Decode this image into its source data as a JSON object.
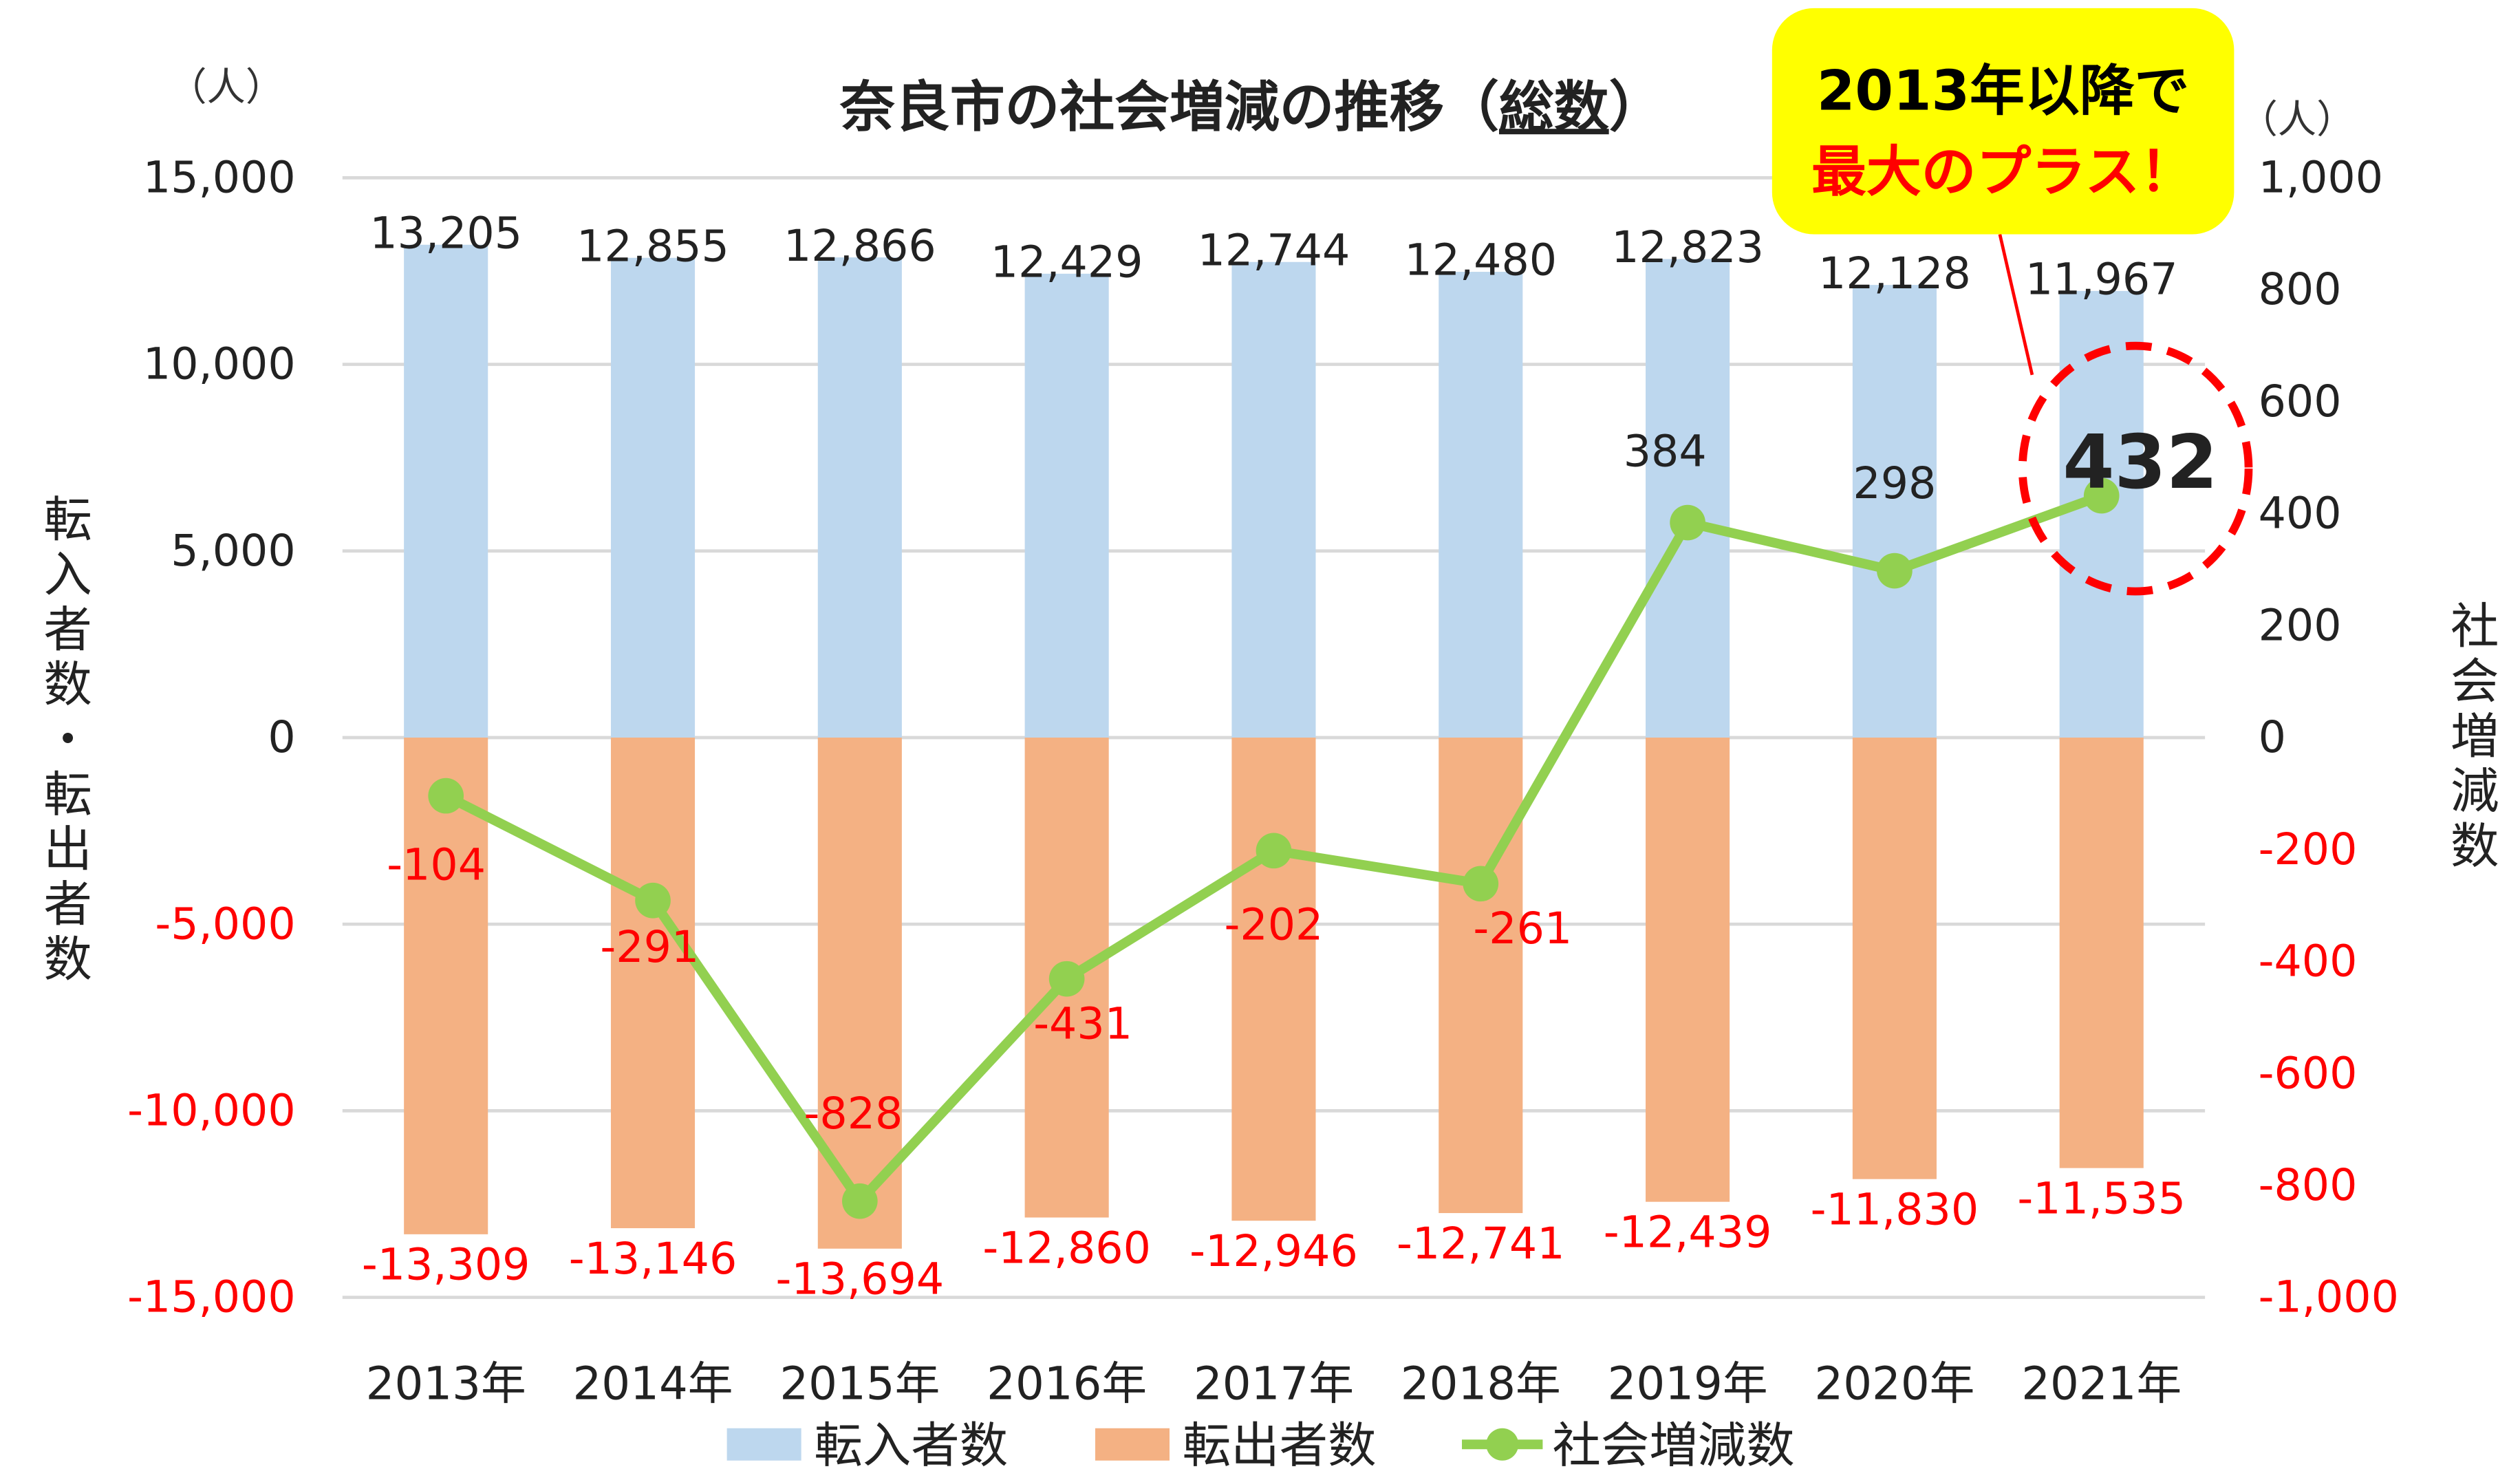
{
  "chart_data": {
    "type": "bar+line",
    "title": "奈良市の社会増減の推移（総数）",
    "title_underlined_part": "総数",
    "categories": [
      "2013年",
      "2014年",
      "2015年",
      "2016年",
      "2017年",
      "2018年",
      "2019年",
      "2020年",
      "2021年"
    ],
    "series": [
      {
        "name": "転入者数",
        "type": "bar",
        "axis": "left",
        "color": "#BDD7EE",
        "values": [
          13205,
          12855,
          12866,
          12429,
          12744,
          12480,
          12823,
          12128,
          11967
        ],
        "labels": [
          "13,205",
          "12,855",
          "12,866",
          "12,429",
          "12,744",
          "12,480",
          "12,823",
          "12,128",
          "11,967"
        ]
      },
      {
        "name": "転出者数",
        "type": "bar",
        "axis": "left",
        "color": "#F4B183",
        "values": [
          -13309,
          -13146,
          -13694,
          -12860,
          -12946,
          -12741,
          -12439,
          -11830,
          -11535
        ],
        "labels": [
          "-13,309",
          "-13,146",
          "-13,694",
          "-12,860",
          "-12,946",
          "-12,741",
          "-12,439",
          "-11,830",
          "-11,535"
        ]
      },
      {
        "name": "社会増減数",
        "type": "line",
        "axis": "right",
        "color": "#92D050",
        "values": [
          -104,
          -291,
          -828,
          -431,
          -202,
          -261,
          384,
          298,
          432
        ],
        "labels": [
          "-104",
          "-291",
          "-828",
          "-431",
          "-202",
          "-261",
          "384",
          "298",
          "432"
        ]
      }
    ],
    "left_axis": {
      "label": "転入者数・転出者数",
      "unit": "（人）",
      "range": [
        -15000,
        15000
      ],
      "ticks": [
        {
          "v": 15000,
          "t": "15,000"
        },
        {
          "v": 10000,
          "t": "10,000"
        },
        {
          "v": 5000,
          "t": "5,000"
        },
        {
          "v": 0,
          "t": "0"
        },
        {
          "v": -5000,
          "t": "-5,000"
        },
        {
          "v": -10000,
          "t": "-10,000"
        },
        {
          "v": -15000,
          "t": "-15,000"
        }
      ]
    },
    "right_axis": {
      "label": "社会増減数",
      "unit": "（人）",
      "range": [
        -1000,
        1000
      ],
      "ticks": [
        {
          "v": 1000,
          "t": "1,000"
        },
        {
          "v": 800,
          "t": "800"
        },
        {
          "v": 600,
          "t": "600"
        },
        {
          "v": 400,
          "t": "400"
        },
        {
          "v": 200,
          "t": "200"
        },
        {
          "v": 0,
          "t": "0"
        },
        {
          "v": -200,
          "t": "-200"
        },
        {
          "v": -400,
          "t": "-400"
        },
        {
          "v": -600,
          "t": "-600"
        },
        {
          "v": -800,
          "t": "-800"
        },
        {
          "v": -1000,
          "t": "-1,000"
        }
      ]
    },
    "grid": true,
    "legend_placement": "bottom",
    "negative_label_color": "#FF0000",
    "annotation": {
      "line1": "2013年以降で",
      "line2": "最大のプラス！",
      "highlight": "432",
      "box_color": "#FFFF00",
      "circle_color": "#FF0000"
    }
  }
}
